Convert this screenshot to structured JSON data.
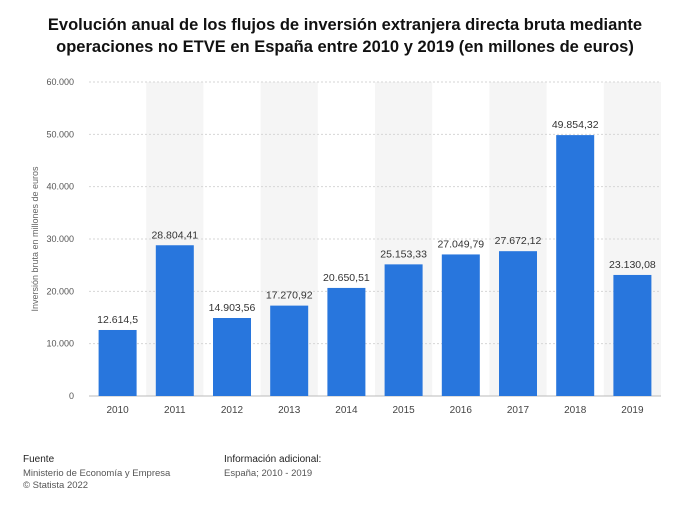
{
  "chart_data": {
    "type": "bar",
    "title": "Evolución anual de los flujos de inversión extranjera directa bruta mediante operaciones no ETVE en España entre 2010 y 2019 (en millones de euros)",
    "xlabel": "",
    "ylabel": "Inversión bruta en millones de euros",
    "ylim": [
      0,
      60000
    ],
    "yticks": [
      0,
      10000,
      20000,
      30000,
      40000,
      50000,
      60000
    ],
    "ytick_labels": [
      "0",
      "10.000",
      "20.000",
      "30.000",
      "40.000",
      "50.000",
      "60.000"
    ],
    "categories": [
      "2010",
      "2011",
      "2012",
      "2013",
      "2014",
      "2015",
      "2016",
      "2017",
      "2018",
      "2019"
    ],
    "values": [
      12614.5,
      28804.41,
      14903.56,
      17270.92,
      20650.51,
      25153.33,
      27049.79,
      27672.12,
      49854.32,
      23130.08
    ],
    "value_labels": [
      "12.614,5",
      "28.804,41",
      "14.903,56",
      "17.270,92",
      "20.650,51",
      "25.153,33",
      "27.049,79",
      "27.672,12",
      "49.854,32",
      "23.130,08"
    ],
    "bar_color": "#2876dd",
    "grid": true
  },
  "footer": {
    "source_heading": "Fuente",
    "source_lines": [
      "Ministerio de Economía y Empresa",
      "© Statista 2022"
    ],
    "info_heading": "Información adicional:",
    "info_lines": [
      "España; 2010 - 2019"
    ]
  }
}
